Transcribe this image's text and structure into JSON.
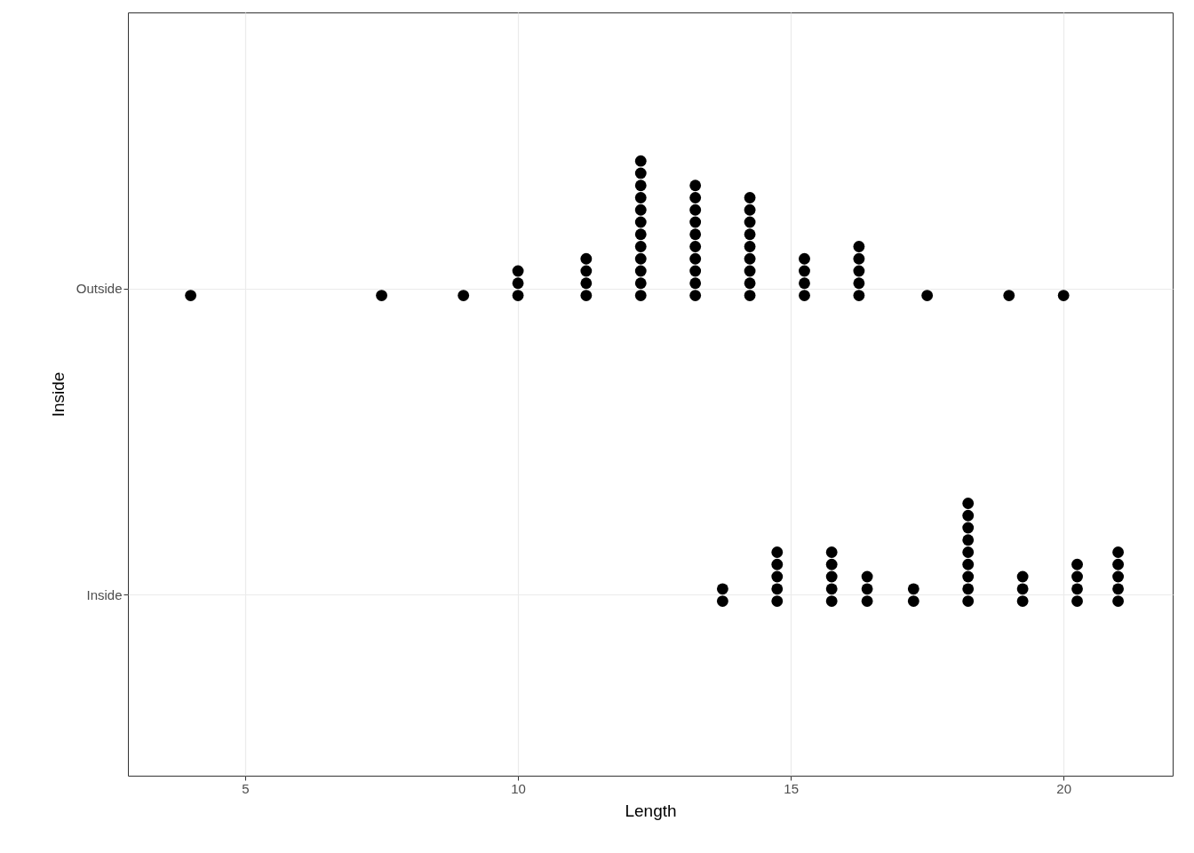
{
  "chart_data": {
    "type": "scatter",
    "orientation": "horizontal",
    "xlabel": "Length",
    "ylabel": "Inside",
    "categories": [
      "Outside",
      "Inside"
    ],
    "xlim": [
      2.85,
      22.0
    ],
    "xticks": [
      5,
      10,
      15,
      20
    ],
    "grid": true,
    "marker": "circle",
    "series": [
      {
        "color": "#000000",
        "values": [
          4.0,
          null
        ]
      },
      {
        "color": "#000000",
        "values": [
          7.5,
          null
        ]
      },
      {
        "color": "#000000",
        "values": [
          9.0,
          null
        ]
      },
      {
        "color": "#000000",
        "values": [
          10.0,
          null
        ]
      },
      {
        "color": "#000000",
        "values": [
          10.0,
          null
        ]
      },
      {
        "color": "#000000",
        "values": [
          10.0,
          null
        ]
      },
      {
        "color": "#000000",
        "values": [
          11.25,
          null
        ]
      },
      {
        "color": "#000000",
        "values": [
          11.25,
          null
        ]
      },
      {
        "color": "#000000",
        "values": [
          11.25,
          null
        ]
      },
      {
        "color": "#000000",
        "values": [
          11.25,
          null
        ]
      },
      {
        "color": "#000000",
        "values": [
          12.25,
          null
        ]
      },
      {
        "color": "#000000",
        "values": [
          12.25,
          null
        ]
      },
      {
        "color": "#000000",
        "values": [
          12.25,
          null
        ]
      },
      {
        "color": "#000000",
        "values": [
          12.25,
          null
        ]
      },
      {
        "color": "#000000",
        "values": [
          12.25,
          null
        ]
      },
      {
        "color": "#000000",
        "values": [
          12.25,
          null
        ]
      },
      {
        "color": "#000000",
        "values": [
          12.25,
          null
        ]
      },
      {
        "color": "#000000",
        "values": [
          12.25,
          null
        ]
      },
      {
        "color": "#000000",
        "values": [
          12.25,
          null
        ]
      },
      {
        "color": "#000000",
        "values": [
          12.25,
          null
        ]
      },
      {
        "color": "#000000",
        "values": [
          12.25,
          null
        ]
      },
      {
        "color": "#000000",
        "values": [
          12.25,
          null
        ]
      },
      {
        "color": "#000000",
        "values": [
          13.25,
          null
        ]
      },
      {
        "color": "#000000",
        "values": [
          13.25,
          null
        ]
      },
      {
        "color": "#000000",
        "values": [
          13.25,
          null
        ]
      },
      {
        "color": "#000000",
        "values": [
          13.25,
          null
        ]
      },
      {
        "color": "#000000",
        "values": [
          13.25,
          null
        ]
      },
      {
        "color": "#000000",
        "values": [
          13.25,
          null
        ]
      },
      {
        "color": "#000000",
        "values": [
          13.25,
          null
        ]
      },
      {
        "color": "#000000",
        "values": [
          13.25,
          null
        ]
      },
      {
        "color": "#000000",
        "values": [
          13.25,
          null
        ]
      },
      {
        "color": "#000000",
        "values": [
          13.25,
          null
        ]
      },
      {
        "color": "#000000",
        "values": [
          14.25,
          null
        ]
      },
      {
        "color": "#000000",
        "values": [
          14.25,
          null
        ]
      },
      {
        "color": "#000000",
        "values": [
          14.25,
          null
        ]
      },
      {
        "color": "#000000",
        "values": [
          14.25,
          null
        ]
      },
      {
        "color": "#000000",
        "values": [
          14.25,
          null
        ]
      },
      {
        "color": "#000000",
        "values": [
          14.25,
          null
        ]
      },
      {
        "color": "#000000",
        "values": [
          14.25,
          null
        ]
      },
      {
        "color": "#000000",
        "values": [
          14.25,
          null
        ]
      },
      {
        "color": "#000000",
        "values": [
          14.25,
          null
        ]
      },
      {
        "color": "#000000",
        "values": [
          15.25,
          null
        ]
      },
      {
        "color": "#000000",
        "values": [
          15.25,
          null
        ]
      },
      {
        "color": "#000000",
        "values": [
          15.25,
          null
        ]
      },
      {
        "color": "#000000",
        "values": [
          15.25,
          null
        ]
      },
      {
        "color": "#000000",
        "values": [
          16.25,
          null
        ]
      },
      {
        "color": "#000000",
        "values": [
          16.25,
          null
        ]
      },
      {
        "color": "#000000",
        "values": [
          16.25,
          null
        ]
      },
      {
        "color": "#000000",
        "values": [
          16.25,
          null
        ]
      },
      {
        "color": "#000000",
        "values": [
          16.25,
          null
        ]
      },
      {
        "color": "#000000",
        "values": [
          17.5,
          null
        ]
      },
      {
        "color": "#000000",
        "values": [
          19.0,
          null
        ]
      },
      {
        "color": "#000000",
        "values": [
          20.0,
          null
        ]
      },
      {
        "color": "#000000",
        "values": [
          null,
          13.75
        ]
      },
      {
        "color": "#000000",
        "values": [
          null,
          13.75
        ]
      },
      {
        "color": "#000000",
        "values": [
          null,
          14.75
        ]
      },
      {
        "color": "#000000",
        "values": [
          null,
          14.75
        ]
      },
      {
        "color": "#000000",
        "values": [
          null,
          14.75
        ]
      },
      {
        "color": "#000000",
        "values": [
          null,
          14.75
        ]
      },
      {
        "color": "#000000",
        "values": [
          null,
          14.75
        ]
      },
      {
        "color": "#000000",
        "values": [
          null,
          15.75
        ]
      },
      {
        "color": "#000000",
        "values": [
          null,
          15.75
        ]
      },
      {
        "color": "#000000",
        "values": [
          null,
          15.75
        ]
      },
      {
        "color": "#000000",
        "values": [
          null,
          15.75
        ]
      },
      {
        "color": "#000000",
        "values": [
          null,
          15.75
        ]
      },
      {
        "color": "#000000",
        "values": [
          null,
          16.4
        ]
      },
      {
        "color": "#000000",
        "values": [
          null,
          16.4
        ]
      },
      {
        "color": "#000000",
        "values": [
          null,
          16.4
        ]
      },
      {
        "color": "#000000",
        "values": [
          null,
          17.25
        ]
      },
      {
        "color": "#000000",
        "values": [
          null,
          17.25
        ]
      },
      {
        "color": "#000000",
        "values": [
          null,
          18.25
        ]
      },
      {
        "color": "#000000",
        "values": [
          null,
          18.25
        ]
      },
      {
        "color": "#000000",
        "values": [
          null,
          18.25
        ]
      },
      {
        "color": "#000000",
        "values": [
          null,
          18.25
        ]
      },
      {
        "color": "#000000",
        "values": [
          null,
          18.25
        ]
      },
      {
        "color": "#000000",
        "values": [
          null,
          18.25
        ]
      },
      {
        "color": "#000000",
        "values": [
          null,
          18.25
        ]
      },
      {
        "color": "#000000",
        "values": [
          null,
          18.25
        ]
      },
      {
        "color": "#000000",
        "values": [
          null,
          18.25
        ]
      },
      {
        "color": "#000000",
        "values": [
          null,
          19.25
        ]
      },
      {
        "color": "#000000",
        "values": [
          null,
          19.25
        ]
      },
      {
        "color": "#000000",
        "values": [
          null,
          19.25
        ]
      },
      {
        "color": "#000000",
        "values": [
          null,
          20.25
        ]
      },
      {
        "color": "#000000",
        "values": [
          null,
          20.25
        ]
      },
      {
        "color": "#000000",
        "values": [
          null,
          20.25
        ]
      },
      {
        "color": "#000000",
        "values": [
          null,
          20.25
        ]
      },
      {
        "color": "#000000",
        "values": [
          null,
          21.0
        ]
      },
      {
        "color": "#000000",
        "values": [
          null,
          21.0
        ]
      },
      {
        "color": "#000000",
        "values": [
          null,
          21.0
        ]
      },
      {
        "color": "#000000",
        "values": [
          null,
          21.0
        ]
      },
      {
        "color": "#000000",
        "values": [
          null,
          21.0
        ]
      }
    ]
  }
}
